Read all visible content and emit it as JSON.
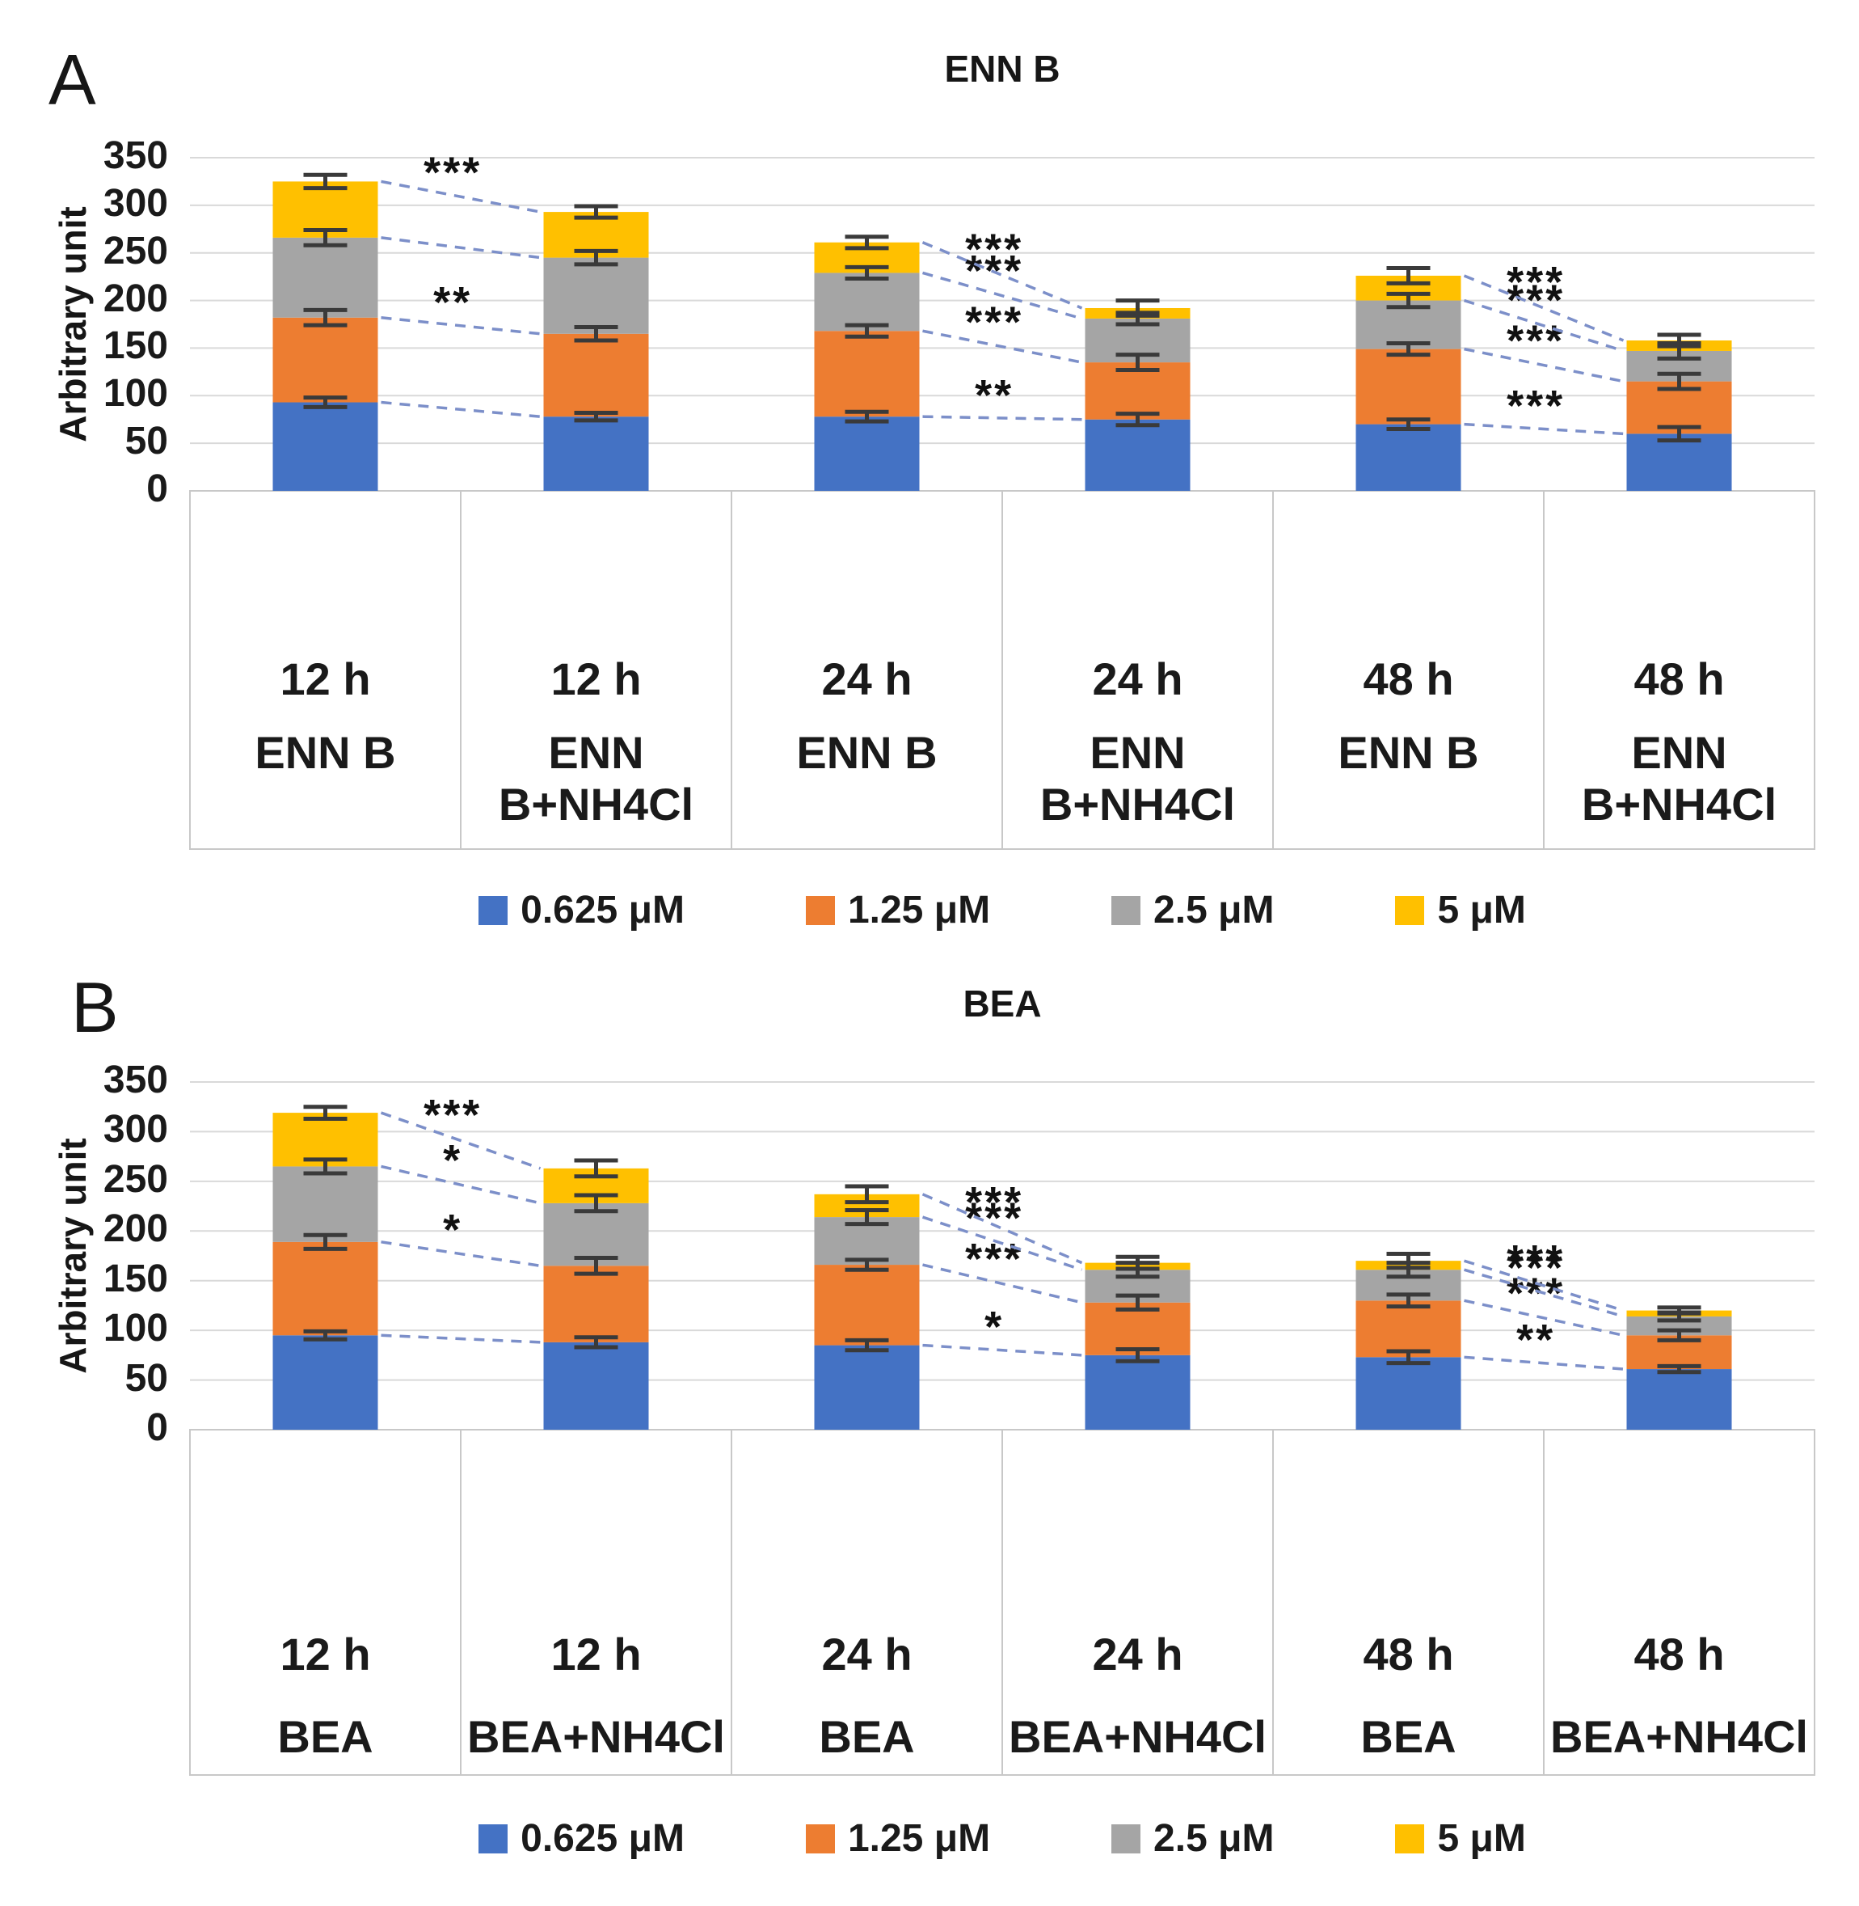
{
  "colors": {
    "series_blue": "#4472C4",
    "series_orange": "#ED7D31",
    "series_gray": "#A5A5A5",
    "series_yellow": "#FFC000",
    "gridline": "#D9D9D9",
    "axis_line": "#BFBFBF",
    "table_border": "#C8C8C8",
    "error_bar": "#3A3A3A",
    "significance_line": "#7C8FC9"
  },
  "chart_data": [
    {
      "type": "bar",
      "stacked": true,
      "panel_label": "A",
      "title": "ENN B",
      "ylabel": "Arbitrary unit",
      "ylim": [
        0,
        350
      ],
      "yticks": [
        0,
        50,
        100,
        150,
        200,
        250,
        300,
        350
      ],
      "grid": true,
      "legend_position": "bottom",
      "categories": [
        {
          "time": "12 h",
          "treatment": "ENN B"
        },
        {
          "time": "12 h",
          "treatment": "ENN\nB+NH4Cl"
        },
        {
          "time": "24 h",
          "treatment": "ENN B"
        },
        {
          "time": "24 h",
          "treatment": "ENN\nB+NH4Cl"
        },
        {
          "time": "48 h",
          "treatment": "ENN B"
        },
        {
          "time": "48 h",
          "treatment": "ENN\nB+NH4Cl"
        }
      ],
      "series": [
        {
          "name": "0.625 μM",
          "color": "#4472C4",
          "values": [
            93,
            78,
            78,
            75,
            70,
            60
          ],
          "errors": [
            5,
            4,
            5,
            6,
            5,
            7
          ]
        },
        {
          "name": "1.25 μM",
          "color": "#ED7D31",
          "values": [
            89,
            87,
            90,
            60,
            79,
            55
          ],
          "errors": [
            8,
            7,
            6,
            8,
            6,
            8
          ]
        },
        {
          "name": "2.5 μM",
          "color": "#A5A5A5",
          "values": [
            84,
            80,
            61,
            46,
            51,
            32
          ],
          "errors": [
            8,
            7,
            6,
            6,
            7,
            8
          ]
        },
        {
          "name": "5 μM",
          "color": "#FFC000",
          "values": [
            59,
            48,
            32,
            11,
            26,
            11
          ],
          "errors": [
            7,
            6,
            6,
            8,
            8,
            6
          ]
        }
      ],
      "stacked_totals": [
        325,
        293,
        261,
        192,
        226,
        158
      ],
      "significance": [
        {
          "left_bar": 0,
          "right_bar": 1,
          "stars_bottom_to_top": [
            "",
            "**",
            "",
            "***"
          ]
        },
        {
          "left_bar": 2,
          "right_bar": 3,
          "stars_bottom_to_top": [
            "**",
            "***",
            "***",
            "***"
          ]
        },
        {
          "left_bar": 4,
          "right_bar": 5,
          "stars_bottom_to_top": [
            "***",
            "***",
            "***",
            "***"
          ]
        }
      ]
    },
    {
      "type": "bar",
      "stacked": true,
      "panel_label": "B",
      "title": "BEA",
      "ylabel": "Arbitrary unit",
      "ylim": [
        0,
        350
      ],
      "yticks": [
        0,
        50,
        100,
        150,
        200,
        250,
        300,
        350
      ],
      "grid": true,
      "legend_position": "bottom",
      "categories": [
        {
          "time": "12 h",
          "treatment": "BEA"
        },
        {
          "time": "12 h",
          "treatment": "BEA+NH4Cl"
        },
        {
          "time": "24 h",
          "treatment": "BEA"
        },
        {
          "time": "24 h",
          "treatment": "BEA+NH4Cl"
        },
        {
          "time": "48 h",
          "treatment": "BEA"
        },
        {
          "time": "48 h",
          "treatment": "BEA+NH4Cl"
        }
      ],
      "series": [
        {
          "name": "0.625 μM",
          "color": "#4472C4",
          "values": [
            95,
            88,
            85,
            75,
            73,
            61
          ],
          "errors": [
            4,
            5,
            5,
            6,
            6,
            3
          ]
        },
        {
          "name": "1.25 μM",
          "color": "#ED7D31",
          "values": [
            94,
            77,
            81,
            53,
            57,
            34
          ],
          "errors": [
            7,
            8,
            5,
            7,
            6,
            5
          ]
        },
        {
          "name": "2.5 μM",
          "color": "#A5A5A5",
          "values": [
            76,
            63,
            48,
            33,
            31,
            19
          ],
          "errors": [
            7,
            8,
            7,
            7,
            7,
            4
          ]
        },
        {
          "name": "5 μM",
          "color": "#FFC000",
          "values": [
            54,
            35,
            23,
            7,
            9,
            6
          ],
          "errors": [
            6,
            8,
            8,
            6,
            7,
            3
          ]
        }
      ],
      "stacked_totals": [
        319,
        263,
        237,
        168,
        170,
        120
      ],
      "significance": [
        {
          "left_bar": 0,
          "right_bar": 1,
          "stars_bottom_to_top": [
            "",
            "*",
            "*",
            "***"
          ]
        },
        {
          "left_bar": 2,
          "right_bar": 3,
          "stars_bottom_to_top": [
            "*",
            "***",
            "***",
            "***"
          ]
        },
        {
          "left_bar": 4,
          "right_bar": 5,
          "stars_bottom_to_top": [
            "**",
            "***",
            "***",
            "***"
          ]
        }
      ]
    }
  ]
}
